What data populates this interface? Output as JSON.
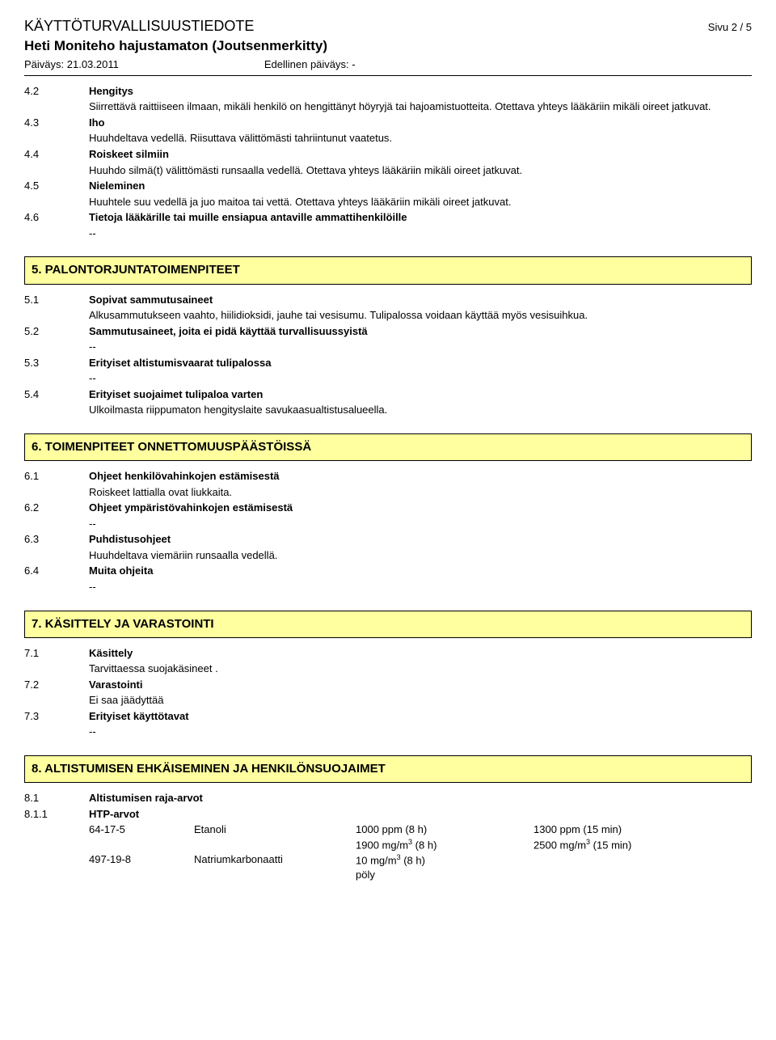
{
  "header": {
    "doc_type": "KÄYTTÖTURVALLISUUSTIEDOTE",
    "page_info": "Sivu 2 / 5",
    "product_name": "Heti Moniteho hajustamaton (Joutsenmerkitty)",
    "date_label": "Päiväys: 21.03.2011",
    "prev_date_label": "Edellinen päiväys: -"
  },
  "items_4": [
    {
      "num": "4.2",
      "title": "Hengitys",
      "text": "Siirrettävä raittiiseen ilmaan, mikäli henkilö on hengittänyt höyryjä tai hajoamistuotteita. Otettava yhteys lääkäriin mikäli oireet jatkuvat."
    },
    {
      "num": "4.3",
      "title": "Iho",
      "text": "Huuhdeltava vedellä. Riisuttava välittömästi tahriintunut vaatetus."
    },
    {
      "num": "4.4",
      "title": "Roiskeet silmiin",
      "text": "Huuhdo silmä(t) välittömästi runsaalla vedellä. Otettava yhteys lääkäriin mikäli oireet jatkuvat."
    },
    {
      "num": "4.5",
      "title": "Nieleminen",
      "text": "Huuhtele suu vedellä ja juo maitoa tai vettä. Otettava yhteys lääkäriin mikäli oireet jatkuvat."
    },
    {
      "num": "4.6",
      "title": "Tietoja lääkärille tai muille ensiapua antaville ammattihenkilöille",
      "text": "--"
    }
  ],
  "section5": {
    "title": "5. PALONTORJUNTATOIMENPITEET",
    "items": [
      {
        "num": "5.1",
        "title": "Sopivat sammutusaineet",
        "text": "Alkusammutukseen vaahto, hiilidioksidi, jauhe tai vesisumu. Tulipalossa voidaan käyttää myös vesisuihkua."
      },
      {
        "num": "5.2",
        "title": "Sammutusaineet, joita ei pidä käyttää turvallisuussyistä",
        "text": "--"
      },
      {
        "num": "5.3",
        "title": "Erityiset altistumisvaarat tulipalossa",
        "text": "--"
      },
      {
        "num": "5.4",
        "title": "Erityiset suojaimet tulipaloa varten",
        "text": "Ulkoilmasta riippumaton hengityslaite savukaasualtistusalueella."
      }
    ]
  },
  "section6": {
    "title": "6. TOIMENPITEET ONNETTOMUUSPÄÄSTÖISSÄ",
    "items": [
      {
        "num": "6.1",
        "title": "Ohjeet henkilövahinkojen estämisestä",
        "text": "Roiskeet lattialla ovat liukkaita."
      },
      {
        "num": "6.2",
        "title": "Ohjeet ympäristövahinkojen estämisestä",
        "text": "--"
      },
      {
        "num": "6.3",
        "title": "Puhdistusohjeet",
        "text": "Huuhdeltava viemäriin runsaalla vedellä."
      },
      {
        "num": "6.4",
        "title": "Muita ohjeita",
        "text": "--"
      }
    ]
  },
  "section7": {
    "title": "7. KÄSITTELY JA VARASTOINTI",
    "items": [
      {
        "num": "7.1",
        "title": "Käsittely",
        "text": "Tarvittaessa suojakäsineet ."
      },
      {
        "num": "7.2",
        "title": "Varastointi",
        "text": "Ei saa jäädyttää"
      },
      {
        "num": "7.3",
        "title": "Erityiset käyttötavat",
        "text": "--"
      }
    ]
  },
  "section8": {
    "title": "8. ALTISTUMISEN EHKÄISEMINEN JA HENKILÖNSUOJAIMET",
    "items": [
      {
        "num": "8.1",
        "title": "Altistumisen raja-arvot"
      },
      {
        "num": "8.1.1",
        "title": "HTP-arvot"
      }
    ],
    "htp": {
      "rows": [
        {
          "cas": "64-17-5",
          "name": "Etanoli",
          "v8h_1": "1000 ppm (8 h)",
          "v15_1": "1300 ppm (15 min)",
          "v8h_2": "1900 mg/m",
          "v8h_2_sup": "3",
          "v8h_2_tail": " (8 h)",
          "v15_2": "2500 mg/m",
          "v15_2_sup": "3",
          "v15_2_tail": " (15 min)"
        },
        {
          "cas": "497-19-8",
          "name": "Natriumkarbonaatti",
          "v8h_1": "10 mg/m",
          "v8h_1_sup": "3",
          "v8h_1_tail": " (8 h)",
          "v8h_2": "pöly"
        }
      ]
    }
  }
}
